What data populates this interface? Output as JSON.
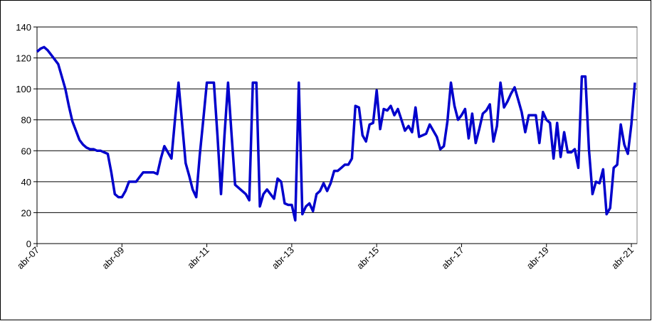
{
  "chart_data": {
    "type": "line",
    "categories": [
      "abr-07",
      null,
      null,
      null,
      null,
      null,
      null,
      null,
      null,
      null,
      null,
      null,
      null,
      null,
      null,
      null,
      null,
      null,
      null,
      null,
      null,
      null,
      null,
      null,
      "abr-09",
      null,
      null,
      null,
      null,
      null,
      null,
      null,
      null,
      null,
      null,
      null,
      null,
      null,
      null,
      null,
      null,
      null,
      null,
      null,
      null,
      null,
      null,
      null,
      "abr-11",
      null,
      null,
      null,
      null,
      null,
      null,
      null,
      null,
      null,
      null,
      null,
      null,
      null,
      null,
      null,
      null,
      null,
      null,
      null,
      null,
      null,
      null,
      null,
      "abr-13",
      null,
      null,
      null,
      null,
      null,
      null,
      null,
      null,
      null,
      null,
      null,
      null,
      null,
      null,
      null,
      null,
      null,
      null,
      null,
      null,
      null,
      null,
      null,
      "abr-15",
      null,
      null,
      null,
      null,
      null,
      null,
      null,
      null,
      null,
      null,
      null,
      null,
      null,
      null,
      null,
      null,
      null,
      null,
      null,
      null,
      null,
      null,
      null,
      "abr-17",
      null,
      null,
      null,
      null,
      null,
      null,
      null,
      null,
      null,
      null,
      null,
      null,
      null,
      null,
      null,
      null,
      null,
      null,
      null,
      null,
      null,
      null,
      null,
      "abr-19",
      null,
      null,
      null,
      null,
      null,
      null,
      null,
      null,
      null,
      null,
      null,
      null,
      null,
      null,
      null,
      null,
      null,
      null,
      null,
      null,
      null,
      null,
      null,
      "abr-21",
      null
    ],
    "series": [
      {
        "name": null,
        "color": "#0000cc",
        "values": [
          124,
          126,
          127,
          125,
          122,
          119,
          116,
          108,
          100,
          89,
          79,
          73,
          67,
          64,
          62,
          61,
          61,
          60,
          60,
          59,
          58,
          46,
          32,
          30,
          30,
          34,
          40,
          40,
          40,
          43,
          46,
          46,
          46,
          46,
          45,
          55,
          63,
          59,
          55,
          80,
          104,
          78,
          52,
          44,
          35,
          30,
          57,
          80,
          104,
          104,
          104,
          70,
          32,
          70,
          104,
          70,
          38,
          36,
          34,
          32,
          28,
          104,
          104,
          24,
          32,
          35,
          32,
          29,
          42,
          40,
          26,
          25,
          25,
          15,
          104,
          19,
          24,
          26,
          21,
          32,
          34,
          39,
          34,
          39,
          47,
          47,
          49,
          51,
          51,
          55,
          89,
          88,
          70,
          66,
          77,
          78,
          99,
          74,
          87,
          86,
          89,
          83,
          87,
          80,
          73,
          76,
          72,
          88,
          69,
          70,
          71,
          77,
          73,
          69,
          61,
          63,
          79,
          104,
          89,
          80,
          83,
          87,
          68,
          84,
          65,
          74,
          84,
          86,
          90,
          66,
          76,
          104,
          88,
          92,
          97,
          101,
          93,
          85,
          72,
          83,
          83,
          83,
          65,
          85,
          80,
          78,
          55,
          78,
          56,
          72,
          59,
          59,
          61,
          49,
          108,
          108,
          61,
          32,
          40,
          39,
          48,
          19,
          23,
          49,
          51,
          77,
          64,
          58,
          77,
          104
        ]
      }
    ],
    "ylim": [
      0,
      140
    ],
    "yticks": [
      0,
      20,
      40,
      60,
      80,
      100,
      120,
      140
    ],
    "grid": true
  }
}
